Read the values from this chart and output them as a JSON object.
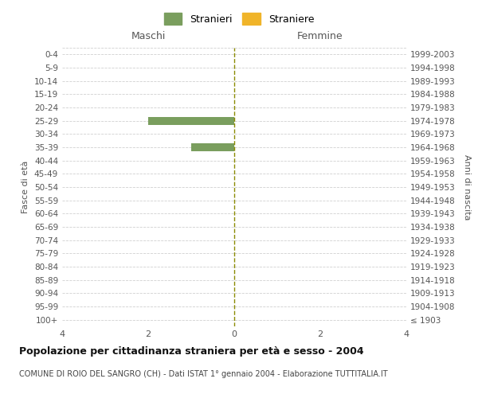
{
  "age_groups": [
    "100+",
    "95-99",
    "90-94",
    "85-89",
    "80-84",
    "75-79",
    "70-74",
    "65-69",
    "60-64",
    "55-59",
    "50-54",
    "45-49",
    "40-44",
    "35-39",
    "30-34",
    "25-29",
    "20-24",
    "15-19",
    "10-14",
    "5-9",
    "0-4"
  ],
  "birth_years": [
    "≤ 1903",
    "1904-1908",
    "1909-1913",
    "1914-1918",
    "1919-1923",
    "1924-1928",
    "1929-1933",
    "1934-1938",
    "1939-1943",
    "1944-1948",
    "1949-1953",
    "1954-1958",
    "1959-1963",
    "1964-1968",
    "1969-1973",
    "1974-1978",
    "1979-1983",
    "1984-1988",
    "1989-1993",
    "1994-1998",
    "1999-2003"
  ],
  "maschi_stranieri": [
    0,
    0,
    0,
    0,
    0,
    0,
    0,
    0,
    0,
    0,
    0,
    0,
    0,
    1,
    0,
    2,
    0,
    0,
    0,
    0,
    0
  ],
  "femmine_straniere": [
    0,
    0,
    0,
    0,
    0,
    0,
    0,
    0,
    0,
    0,
    0,
    0,
    0,
    0,
    0,
    0,
    0,
    0,
    0,
    0,
    0
  ],
  "color_maschi": "#7a9e5e",
  "color_femmine": "#f0b429",
  "title": "Popolazione per cittadinanza straniera per età e sesso - 2004",
  "subtitle": "COMUNE DI ROIO DEL SANGRO (CH) - Dati ISTAT 1° gennaio 2004 - Elaborazione TUTTITALIA.IT",
  "xlabel_left": "Maschi",
  "xlabel_right": "Femmine",
  "ylabel_left": "Fasce di età",
  "ylabel_right": "Anni di nascita",
  "legend_maschi": "Stranieri",
  "legend_femmine": "Straniere",
  "xlim": 4,
  "background_color": "#ffffff",
  "grid_color": "#d0d0d0"
}
